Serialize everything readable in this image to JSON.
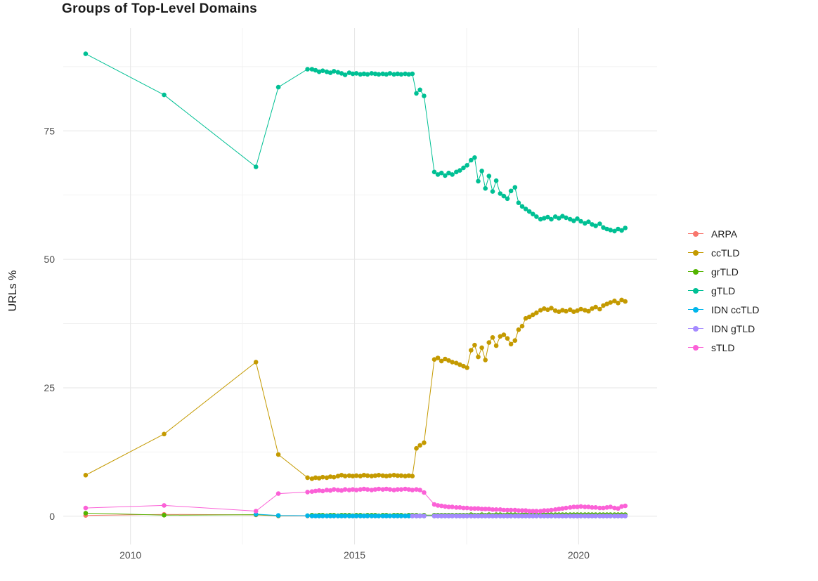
{
  "chart_data": {
    "type": "line",
    "title": "Groups of Top-Level Domains",
    "xlabel": "",
    "ylabel": "URLs %",
    "legend_position": "right",
    "grid": true,
    "xlim": [
      2008.5,
      2021.75
    ],
    "ylim": [
      -5.5,
      95
    ],
    "x_ticks": [
      2010,
      2015,
      2020
    ],
    "y_ticks": [
      0,
      25,
      50,
      75
    ],
    "x_minor_ticks": [
      2012.5,
      2017.5
    ],
    "y_minor_ticks": [
      12.5,
      37.5,
      62.5,
      87.5
    ],
    "tick_color": "#4d4d4d",
    "grid_major_color": "#e6e6e6",
    "grid_minor_color": "#f2f2f2",
    "x": [
      2009.0,
      2010.75,
      2012.8,
      2013.3,
      2013.95,
      2014.05,
      2014.13,
      2014.21,
      2014.29,
      2014.38,
      2014.46,
      2014.54,
      2014.63,
      2014.71,
      2014.79,
      2014.88,
      2014.96,
      2015.04,
      2015.13,
      2015.21,
      2015.29,
      2015.38,
      2015.46,
      2015.54,
      2015.63,
      2015.71,
      2015.79,
      2015.88,
      2015.96,
      2016.04,
      2016.13,
      2016.21,
      2016.29,
      2016.38,
      2016.46,
      2016.55,
      2016.78,
      2016.86,
      2016.94,
      2017.02,
      2017.1,
      2017.18,
      2017.27,
      2017.35,
      2017.43,
      2017.51,
      2017.6,
      2017.68,
      2017.76,
      2017.84,
      2017.92,
      2018.0,
      2018.08,
      2018.16,
      2018.25,
      2018.33,
      2018.41,
      2018.49,
      2018.58,
      2018.66,
      2018.74,
      2018.82,
      2018.9,
      2018.98,
      2019.06,
      2019.15,
      2019.23,
      2019.31,
      2019.39,
      2019.48,
      2019.56,
      2019.64,
      2019.72,
      2019.81,
      2019.89,
      2019.97,
      2020.05,
      2020.14,
      2020.22,
      2020.3,
      2020.38,
      2020.47,
      2020.55,
      2020.63,
      2020.71,
      2020.8,
      2020.88,
      2020.96,
      2021.04
    ],
    "series": [
      {
        "name": "ARPA",
        "color": "#F8766D",
        "values": [
          0.15,
          0.35,
          0.25,
          0.05,
          0.05,
          0.05,
          0.05,
          0.05,
          0.05,
          0.05,
          0.05,
          0.05,
          0.05,
          0.05,
          0.05,
          0.05,
          0.05,
          0.05,
          0.05,
          0.05,
          0.05,
          0.05,
          0.05,
          0.05,
          0.05,
          0.05,
          0.05,
          0.05,
          0.05,
          0.05,
          0.05,
          0.05,
          0.05,
          0.05,
          0.05,
          0.05,
          0.05,
          0.05,
          0.05,
          0.05,
          0.05,
          0.05,
          0.05,
          0.05,
          0.05,
          0.05,
          0.05,
          0.05,
          0.05,
          0.05,
          0.05,
          0.05,
          0.05,
          0.05,
          0.05,
          0.05,
          0.05,
          0.05,
          0.05,
          0.05,
          0.05,
          0.05,
          0.05,
          0.05,
          0.05,
          0.05,
          0.05,
          0.05,
          0.05,
          0.05,
          0.05,
          0.05,
          0.05,
          0.05,
          0.05,
          0.05,
          0.05,
          0.05,
          0.05,
          0.05,
          0.05,
          0.05,
          0.05,
          0.05,
          0.05,
          0.05,
          0.05,
          0.05,
          0.05
        ]
      },
      {
        "name": "ccTLD",
        "color": "#C49A00",
        "values": [
          8,
          16,
          30,
          12,
          7.5,
          7.3,
          7.5,
          7.4,
          7.6,
          7.5,
          7.7,
          7.6,
          7.8,
          8,
          7.8,
          7.9,
          7.8,
          7.9,
          7.8,
          8,
          7.9,
          7.8,
          7.9,
          8,
          7.9,
          7.8,
          7.9,
          8,
          7.9,
          7.9,
          7.8,
          7.9,
          7.8,
          13.2,
          13.8,
          14.3,
          30.5,
          30.8,
          30.2,
          30.6,
          30.3,
          30,
          29.8,
          29.5,
          29.2,
          28.9,
          32.3,
          33.3,
          31,
          32.8,
          30.4,
          33.8,
          34.8,
          33.2,
          35,
          35.3,
          34.6,
          33.5,
          34.2,
          36.3,
          37,
          38.5,
          38.8,
          39.2,
          39.6,
          40.1,
          40.4,
          40.2,
          40.5,
          40,
          39.8,
          40.1,
          39.9,
          40.2,
          39.8,
          40,
          40.3,
          40.1,
          39.9,
          40.4,
          40.7,
          40.3,
          41,
          41.3,
          41.6,
          41.9,
          41.5,
          42.1,
          41.8
        ]
      },
      {
        "name": "grTLD",
        "color": "#53B400",
        "values": [
          0.6,
          0.2,
          0.3,
          0.1,
          0.1,
          0.2,
          0.1,
          0.2,
          0.2,
          0.1,
          0.2,
          0.2,
          0.1,
          0.2,
          0.2,
          0.2,
          0.1,
          0.2,
          0.2,
          0.1,
          0.2,
          0.2,
          0.2,
          0.1,
          0.2,
          0.2,
          0.1,
          0.2,
          0.2,
          0.2,
          0.1,
          0.2,
          0.2,
          0.2,
          0.1,
          0.2,
          0.2,
          0.2,
          0.2,
          0.2,
          0.2,
          0.2,
          0.2,
          0.2,
          0.2,
          0.2,
          0.3,
          0.2,
          0.2,
          0.3,
          0.2,
          0.3,
          0.2,
          0.3,
          0.3,
          0.2,
          0.3,
          0.3,
          0.3,
          0.2,
          0.3,
          0.3,
          0.3,
          0.3,
          0.3,
          0.3,
          0.3,
          0.3,
          0.3,
          0.3,
          0.3,
          0.3,
          0.3,
          0.3,
          0.3,
          0.3,
          0.3,
          0.3,
          0.3,
          0.3,
          0.3,
          0.3,
          0.3,
          0.3,
          0.3,
          0.3,
          0.3,
          0.3,
          0.3
        ]
      },
      {
        "name": "gTLD",
        "color": "#00C094",
        "values": [
          90,
          82,
          68,
          83.5,
          87,
          87,
          86.8,
          86.5,
          86.7,
          86.5,
          86.3,
          86.6,
          86.4,
          86.2,
          85.9,
          86.3,
          86.1,
          86.2,
          86,
          86.1,
          86,
          86.2,
          86.1,
          86,
          86.1,
          86,
          86.2,
          86,
          86.1,
          86,
          86.1,
          86,
          86.1,
          82.3,
          83,
          81.8,
          67,
          66.5,
          66.8,
          66.3,
          66.8,
          66.5,
          67,
          67.3,
          67.8,
          68.3,
          69.3,
          69.8,
          65.2,
          67.2,
          63.8,
          66.2,
          63.2,
          65.3,
          62.8,
          62.3,
          61.8,
          63.3,
          64,
          61,
          60.3,
          59.8,
          59.3,
          58.8,
          58.3,
          57.8,
          58,
          58.2,
          57.8,
          58.3,
          58,
          58.4,
          58.1,
          57.8,
          57.5,
          57.9,
          57.4,
          57,
          57.3,
          56.8,
          56.5,
          56.9,
          56.2,
          55.9,
          55.7,
          55.5,
          55.9,
          55.6,
          56.1
        ]
      },
      {
        "name": "IDN ccTLD",
        "color": "#00B6EB",
        "values": [
          null,
          null,
          0.4,
          0.15,
          0.1,
          0.05,
          0.05,
          0.05,
          0.05,
          0.05,
          0.05,
          0.05,
          0.05,
          0.05,
          0.05,
          0.05,
          0.05,
          0.05,
          0.05,
          0.05,
          0.05,
          0.05,
          0.05,
          0.05,
          0.05,
          0.05,
          0.05,
          0.05,
          0.05,
          0.05,
          0.05,
          0.05,
          0.05,
          0.05,
          0.05,
          0.05,
          0.05,
          0.05,
          0.05,
          0.05,
          0.05,
          0.05,
          0.05,
          0.05,
          0.05,
          0.05,
          0.05,
          0.05,
          0.05,
          0.05,
          0.05,
          0.05,
          0.05,
          0.05,
          0.05,
          0.05,
          0.05,
          0.05,
          0.05,
          0.05,
          0.05,
          0.05,
          0.05,
          0.05,
          0.05,
          0.05,
          0.05,
          0.05,
          0.05,
          0.05,
          0.05,
          0.05,
          0.05,
          0.05,
          0.05,
          0.05,
          0.05,
          0.05,
          0.05,
          0.05,
          0.05,
          0.05,
          0.05,
          0.05,
          0.05,
          0.05,
          0.05,
          0.05,
          0.05
        ]
      },
      {
        "name": "IDN gTLD",
        "color": "#A58AFF",
        "values": [
          null,
          null,
          null,
          null,
          null,
          null,
          null,
          null,
          null,
          null,
          null,
          null,
          null,
          null,
          null,
          null,
          null,
          null,
          null,
          null,
          null,
          null,
          null,
          null,
          null,
          null,
          null,
          null,
          null,
          null,
          null,
          null,
          0.05,
          0.05,
          0.05,
          0.05,
          0.05,
          0.05,
          0.05,
          0.05,
          0.05,
          0.05,
          0.05,
          0.05,
          0.05,
          0.05,
          0.05,
          0.05,
          0.05,
          0.05,
          0.05,
          0.05,
          0.05,
          0.05,
          0.05,
          0.05,
          0.05,
          0.05,
          0.05,
          0.05,
          0.05,
          0.05,
          0.05,
          0.05,
          0.05,
          0.05,
          0.05,
          0.05,
          0.05,
          0.05,
          0.05,
          0.05,
          0.05,
          0.05,
          0.05,
          0.05,
          0.05,
          0.05,
          0.05,
          0.05,
          0.05,
          0.05,
          0.05,
          0.05,
          0.05,
          0.05,
          0.05,
          0.05,
          0.05
        ]
      },
      {
        "name": "sTLD",
        "color": "#FB61D7",
        "values": [
          1.6,
          2.1,
          1,
          4.4,
          4.7,
          4.8,
          4.9,
          5,
          4.9,
          5.1,
          5,
          5.2,
          5.1,
          5,
          5.2,
          5.1,
          5.2,
          5.1,
          5.2,
          5.3,
          5.2,
          5.1,
          5.2,
          5.3,
          5.2,
          5.3,
          5.2,
          5.1,
          5.2,
          5.2,
          5.3,
          5.2,
          5.1,
          5.2,
          5.1,
          4.6,
          2.3,
          2.1,
          2,
          1.9,
          1.8,
          1.8,
          1.7,
          1.7,
          1.6,
          1.6,
          1.5,
          1.5,
          1.5,
          1.4,
          1.4,
          1.4,
          1.3,
          1.3,
          1.3,
          1.2,
          1.2,
          1.2,
          1.2,
          1.1,
          1.1,
          1.1,
          1,
          1,
          1,
          1,
          1.1,
          1.1,
          1.2,
          1.3,
          1.4,
          1.5,
          1.6,
          1.7,
          1.8,
          1.8,
          1.9,
          1.8,
          1.8,
          1.7,
          1.7,
          1.6,
          1.6,
          1.7,
          1.8,
          1.6,
          1.5,
          1.9,
          2
        ]
      }
    ]
  }
}
